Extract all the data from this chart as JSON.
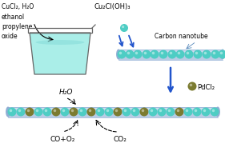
{
  "bg_color": "#ffffff",
  "cyan_color": "#4ECDC4",
  "olive_color": "#7B7B30",
  "tube_fill": "#B8CCE4",
  "tube_edge": "#8FAED4",
  "tube_highlight": "#D6E4F5",
  "blue_arrow": "#2255CC",
  "beaker_liquid": "#AAEEE8",
  "beaker_edge": "#666666",
  "text_color": "#000000",
  "label_cucl2": "CuCl₂, H₂O\nethanol\npropylene\noxide",
  "label_cu2cl": "Cu₂Cl(OH)₃",
  "label_cnt": "Carbon nanotube",
  "label_pdcl2": "PdCl₂",
  "label_h2o": "H₂O",
  "label_co_o2": "CO+O₂",
  "label_co2": "CO₂",
  "figw": 2.81,
  "figh": 1.89,
  "dpi": 100
}
